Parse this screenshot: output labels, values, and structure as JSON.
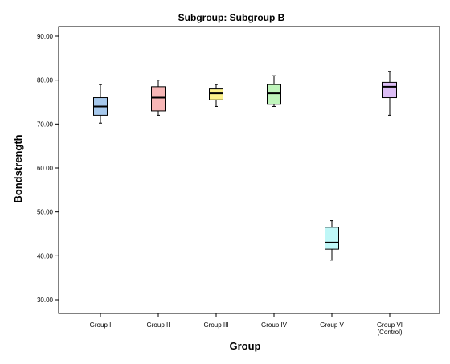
{
  "chart_data": {
    "type": "boxplot",
    "title": "Subgroup: Subgroup B",
    "xlabel": "Group",
    "ylabel": "Bondstrength",
    "ylim": [
      27,
      93
    ],
    "yticks": [
      "30.00",
      "40.00",
      "50.00",
      "60.00",
      "70.00",
      "80.00",
      "90.00"
    ],
    "grid": false,
    "categories": [
      {
        "label": "Group I",
        "sublabel": ""
      },
      {
        "label": "Group II",
        "sublabel": ""
      },
      {
        "label": "Group III",
        "sublabel": ""
      },
      {
        "label": "Group IV",
        "sublabel": ""
      },
      {
        "label": "Group V",
        "sublabel": ""
      },
      {
        "label": "Group VI",
        "sublabel": "(Control)"
      }
    ],
    "boxes": [
      {
        "min": 70.2,
        "q1": 72.0,
        "median": 74.0,
        "q3": 76.0,
        "max": 79.0,
        "color": "#A6C8EC"
      },
      {
        "min": 72.0,
        "q1": 73.0,
        "median": 76.0,
        "q3": 78.5,
        "max": 80.0,
        "color": "#F7B6B6"
      },
      {
        "min": 74.0,
        "q1": 75.5,
        "median": 77.0,
        "q3": 78.0,
        "max": 79.0,
        "color": "#FCF28C"
      },
      {
        "min": 74.0,
        "q1": 74.5,
        "median": 77.0,
        "q3": 79.0,
        "max": 81.0,
        "color": "#BFF5BB"
      },
      {
        "min": 39.0,
        "q1": 41.5,
        "median": 43.0,
        "q3": 46.5,
        "max": 48.0,
        "color": "#BFF7F7"
      },
      {
        "min": 72.0,
        "q1": 76.0,
        "median": 78.5,
        "q3": 79.5,
        "max": 82.0,
        "color": "#DCBDF5"
      }
    ]
  }
}
